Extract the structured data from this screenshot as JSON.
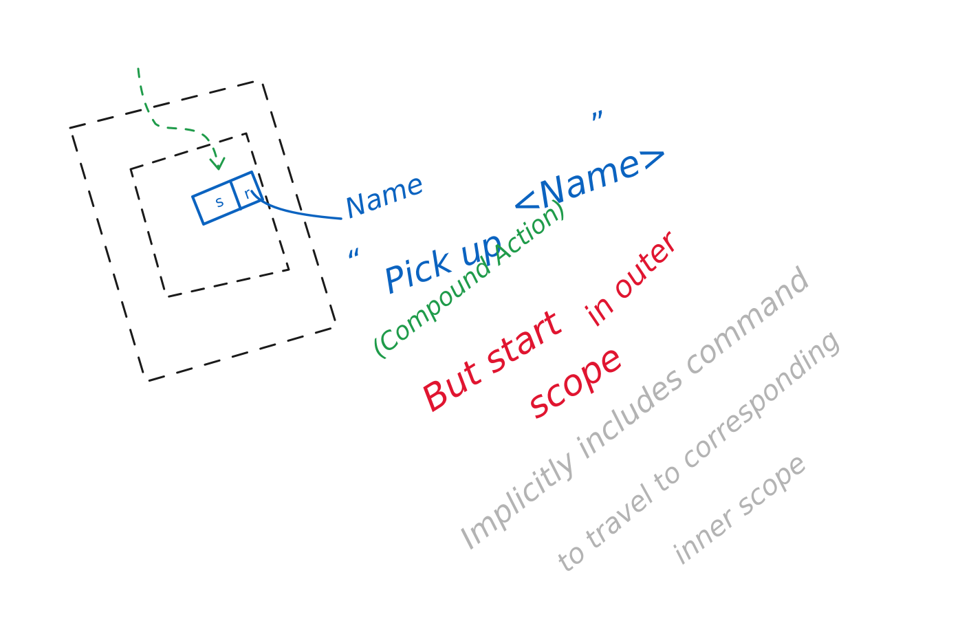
{
  "colors": {
    "ink_black": "#1a1a1a",
    "ink_blue": "#0b63c0",
    "ink_green": "#1f9b4a",
    "ink_red": "#e01530",
    "ink_gray": "#b3b3b3",
    "background": "#ffffff"
  },
  "diagram": {
    "cell_left": "s",
    "cell_right": "r",
    "name_label": "Name",
    "open_quote": "“",
    "close_quote": "”",
    "pick_up": "Pick up",
    "name_placeholder": "<Name>",
    "compound_action": "(Compound Action)",
    "but_start": "But start",
    "in_outer": "in outer",
    "scope": "scope",
    "implicitly_line1": "Implicitly includes command",
    "implicitly_line2": "to travel to corresponding",
    "implicitly_line3": "inner scope"
  }
}
